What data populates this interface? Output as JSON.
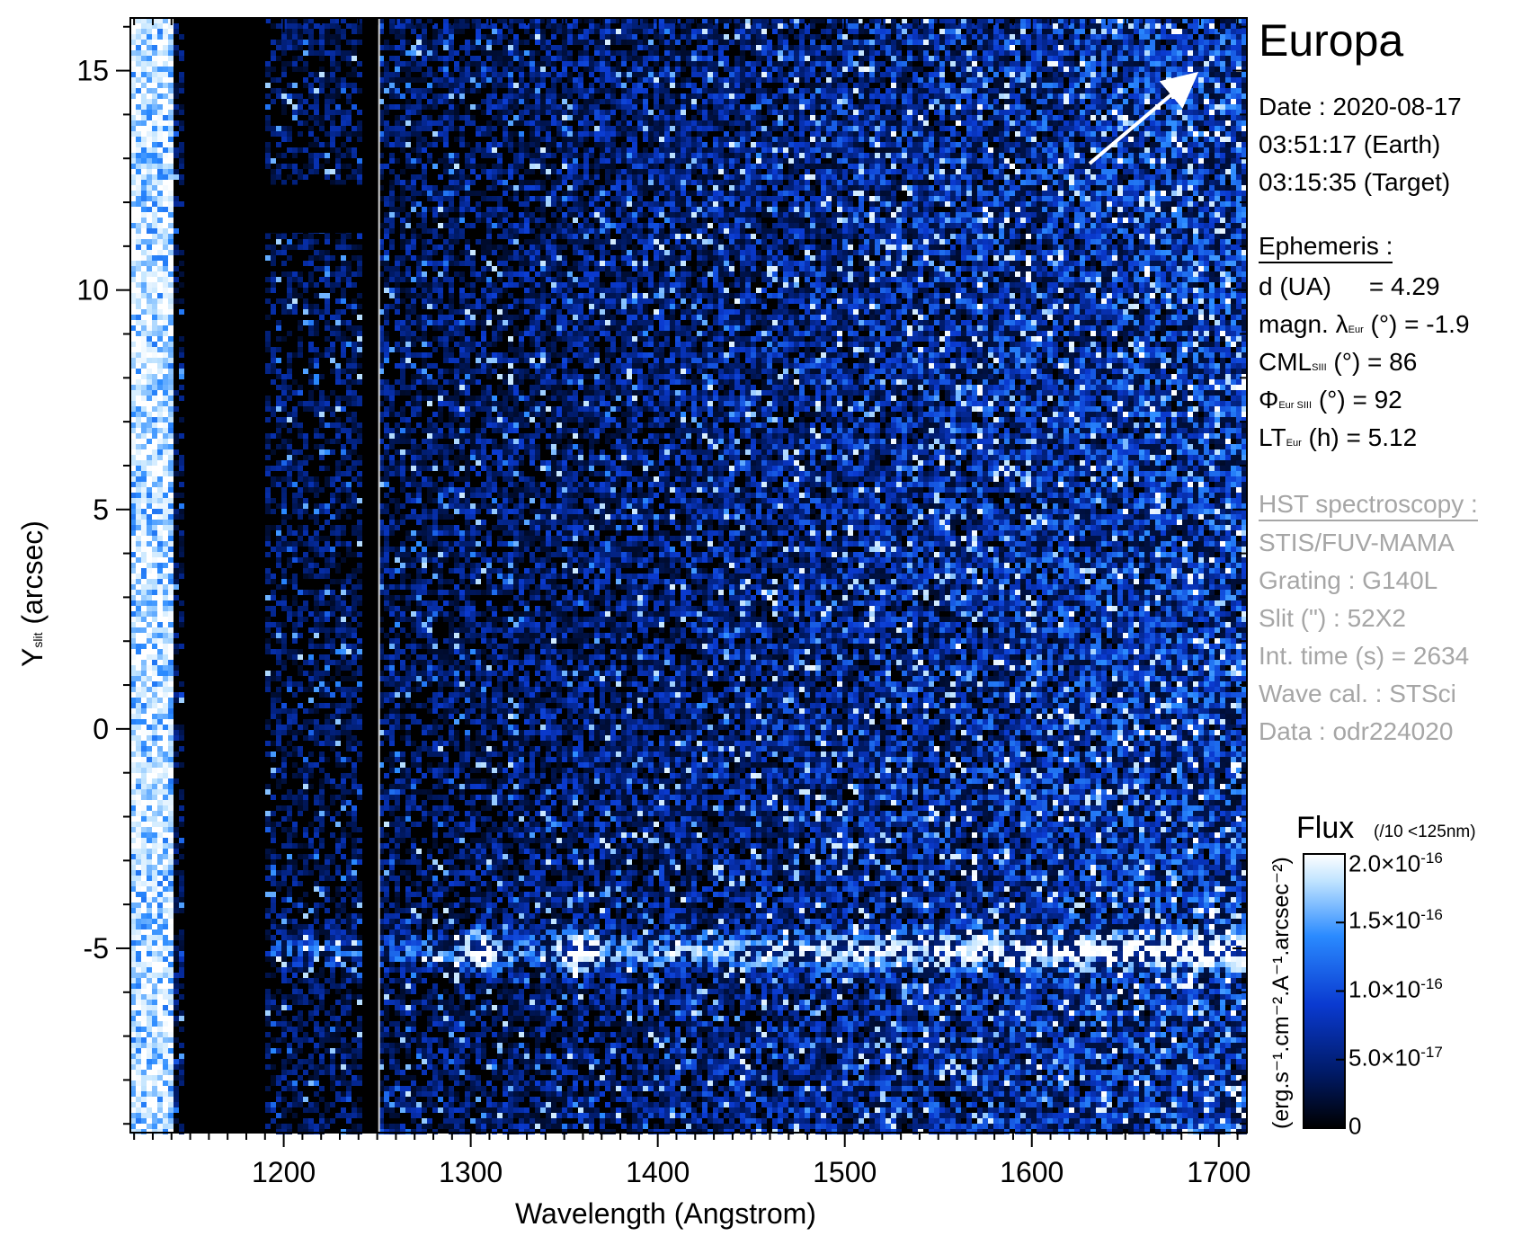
{
  "chart_data": {
    "type": "heatmap",
    "title": "Europa",
    "xlabel": "Wavelength (Angstrom)",
    "ylabel_main": "Y",
    "ylabel_sub": "slit",
    "ylabel_unit": "(arcsec)",
    "xlim": [
      1118,
      1715
    ],
    "ylim": [
      -9.2,
      16.2
    ],
    "x_ticks": [
      1200,
      1300,
      1400,
      1500,
      1600,
      1700
    ],
    "x_tick_labels": [
      "1200",
      "1300",
      "1400",
      "1500",
      "1600",
      "1700"
    ],
    "y_ticks": [
      15,
      10,
      5,
      0,
      -5
    ],
    "y_tick_labels": [
      "15",
      "10",
      "5",
      "0",
      "-5"
    ],
    "emission_band_y": -5.0,
    "bright_features_x": [
      1304,
      1356
    ],
    "colorbar": {
      "label": "Flux",
      "label_note": "(/10 <125nm)",
      "unit_label": "(erg.s⁻¹.cm⁻².A⁻¹.arcsec⁻²)",
      "range": [
        0,
        2e-16
      ],
      "ticks": [
        0,
        5e-17,
        1e-16,
        1.5e-16,
        2e-16
      ],
      "tick_labels": [
        {
          "mant": "0",
          "exp": ""
        },
        {
          "mant": "5.0×10",
          "exp": "-17"
        },
        {
          "mant": "1.0×10",
          "exp": "-16"
        },
        {
          "mant": "1.5×10",
          "exp": "-16"
        },
        {
          "mant": "2.0×10",
          "exp": "-16"
        }
      ],
      "colors": [
        "#000000",
        "#001a66",
        "#0a3ad0",
        "#2a8aff",
        "#bfe3ff",
        "#ffffff"
      ]
    }
  },
  "info": {
    "target": "Europa",
    "date_line": "Date : 2020-08-17",
    "earth_time": "03:51:17 (Earth)",
    "target_time": "03:15:35 (Target)",
    "ephemeris_header": "Ephemeris :",
    "eph_d_label": "d (UA)",
    "eph_d_value": "= 4.29",
    "eph_lat_prefix": "magn. λ",
    "eph_lat_sub": "Eur",
    "eph_lat_suffix": "(°)  = -1.9",
    "eph_cml_prefix": "CML",
    "eph_cml_sub": "SIII",
    "eph_cml_suffix": "(°) = 86",
    "eph_phi_prefix": "Φ",
    "eph_phi_sub": "Eur SIII",
    "eph_phi_suffix": "(°) = 92",
    "eph_lt_prefix": "LT",
    "eph_lt_sub": "Eur",
    "eph_lt_suffix": "(h) = 5.12",
    "hst_header": "HST spectroscopy :",
    "instrument": "STIS/FUV-MAMA",
    "grating": "Grating : G140L",
    "slit": "Slit (\") : 52X2",
    "int_time": "Int. time (s) = 2634",
    "wave_cal": "Wave cal. : STSci",
    "data_id": "Data : odr224020"
  }
}
